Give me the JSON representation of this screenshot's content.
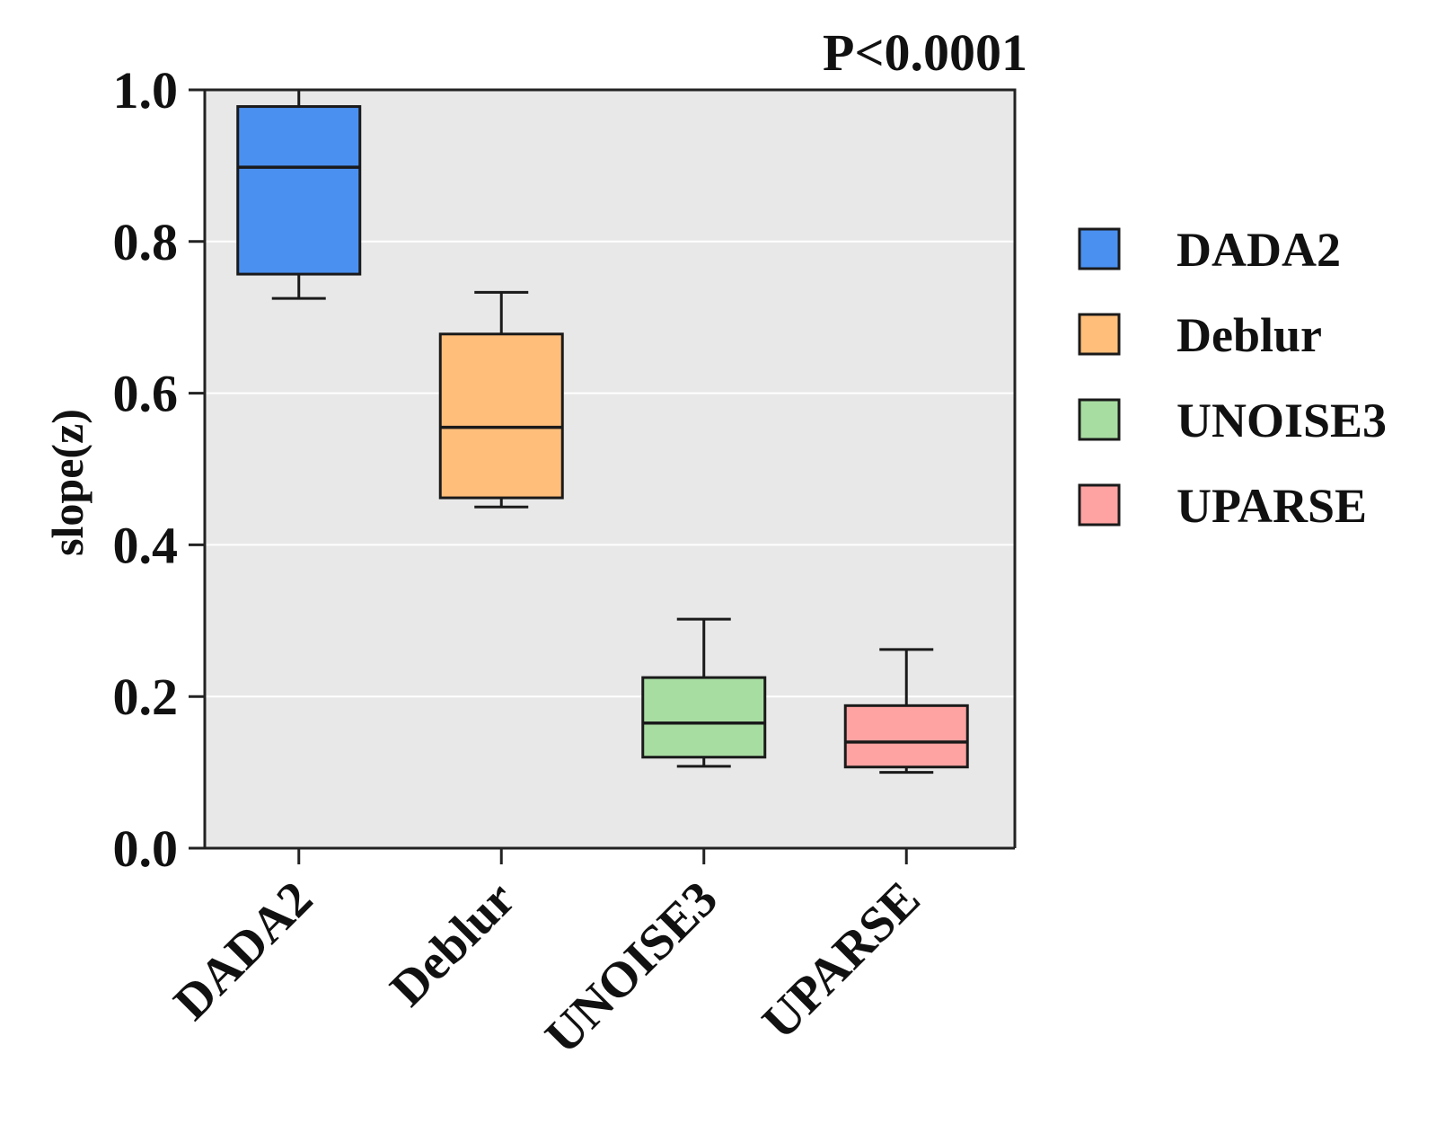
{
  "chart_data": {
    "type": "box",
    "annotation": "P<0.0001",
    "ylabel": "slope(z)",
    "xlabel": "",
    "ylim": [
      0,
      1.0
    ],
    "yticks": [
      0.0,
      0.2,
      0.4,
      0.6,
      0.8,
      1.0
    ],
    "ytick_labels": [
      "0.0",
      "0.2",
      "0.4",
      "0.6",
      "0.8",
      "1.0"
    ],
    "grid": true,
    "legend_position": "right",
    "categories": [
      "DADA2",
      "Deblur",
      "UNOISE3",
      "UPARSE"
    ],
    "boxes": [
      {
        "name": "DADA2",
        "min": 0.725,
        "q1": 0.757,
        "median": 0.898,
        "q3": 0.978,
        "max": 1.0,
        "color": "#4A90F0"
      },
      {
        "name": "Deblur",
        "min": 0.45,
        "q1": 0.462,
        "median": 0.555,
        "q3": 0.678,
        "max": 0.733,
        "color": "#FFBE7A"
      },
      {
        "name": "UNOISE3",
        "min": 0.108,
        "q1": 0.12,
        "median": 0.165,
        "q3": 0.225,
        "max": 0.302,
        "color": "#A8DDA2"
      },
      {
        "name": "UPARSE",
        "min": 0.1,
        "q1": 0.107,
        "median": 0.14,
        "q3": 0.188,
        "max": 0.262,
        "color": "#FFA2A2"
      }
    ],
    "legend": [
      {
        "label": "DADA2",
        "color": "#4A90F0"
      },
      {
        "label": "Deblur",
        "color": "#FFBE7A"
      },
      {
        "label": "UNOISE3",
        "color": "#A8DDA2"
      },
      {
        "label": "UPARSE",
        "color": "#FFA2A2"
      }
    ],
    "plot_background": "#E8E8E8",
    "grid_color": "#FFFFFF",
    "axis_color": "#222222"
  }
}
